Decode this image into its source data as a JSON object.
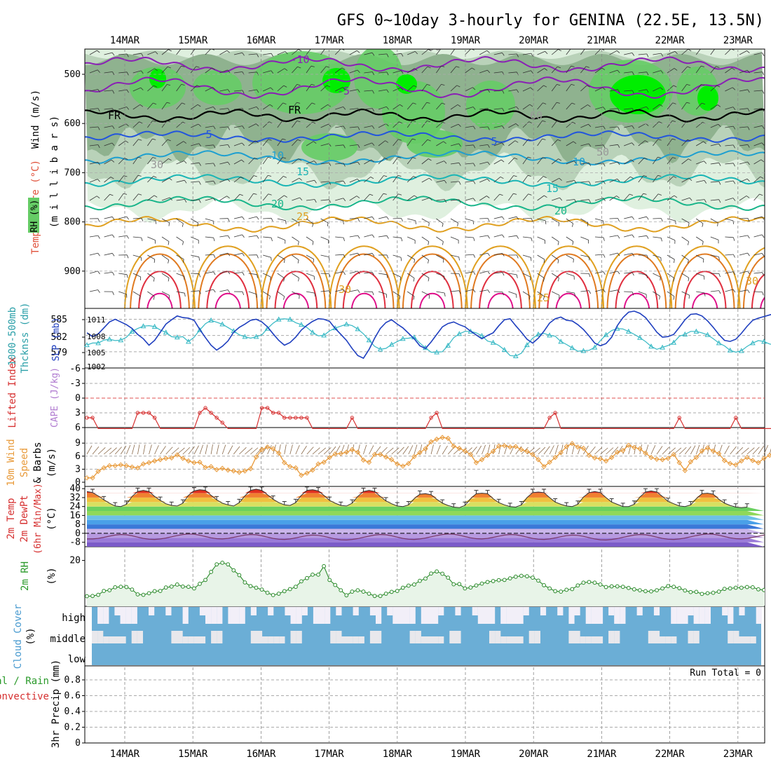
{
  "title": "GFS 0~10day 3-hourly for GENINA (22.5E, 13.5N)",
  "dates": [
    "14MAR",
    "15MAR",
    "16MAR",
    "17MAR",
    "18MAR",
    "19MAR",
    "20MAR",
    "21MAR",
    "22MAR",
    "23MAR"
  ],
  "colors": {
    "rh_light": "#dff0df",
    "rh_mid": "#b9d2b9",
    "rh_dark": "#8fb28f",
    "rh_green": "#66cc66",
    "rh_bright": "#00ee00",
    "purple": "#8a1fb5",
    "blue": "#2255dd",
    "teal": "#1d9fd0",
    "cyan": "#19b5b5",
    "green_teal": "#19b58a",
    "gold": "#e0a020",
    "orange": "#e07a20",
    "red": "#e03040",
    "magenta": "#e0108a",
    "slp": "#1f3fbf",
    "thick": "#35b8c4",
    "li": "#d63030",
    "wind": "#e89a3a",
    "cloud": "#6baed6",
    "rhline": "#2a8a2a"
  },
  "panels": [
    {
      "id": "upper",
      "labels": [
        "Wind (m/s)",
        "Temperature (°C)",
        "RH (%)",
        "(m i l l i b a r s)"
      ],
      "yticks": [
        "500",
        "600",
        "700",
        "800",
        "900"
      ],
      "contour_labels": [
        "-10",
        "-5",
        "FR",
        "FR",
        "5",
        "5",
        "10",
        "10",
        "15",
        "15",
        "20",
        "20",
        "25",
        "25",
        "30",
        "30",
        "30",
        "30",
        "50",
        "60"
      ]
    },
    {
      "id": "slp",
      "labels": [
        "1000-500mb",
        "Thcknss (dm)",
        "SLP (mb)"
      ],
      "yticks_left": [
        "585",
        "582",
        "579"
      ],
      "yticks_right": [
        "1011",
        "1008",
        "1005",
        "1002"
      ]
    },
    {
      "id": "li",
      "labels": [
        "Lifted Index",
        "CAPE (J/kg)"
      ],
      "yticks": [
        "-6",
        "-3",
        "0",
        "3",
        "6"
      ]
    },
    {
      "id": "wind10",
      "labels": [
        "10m Wind",
        "Speed",
        "& Barbs",
        "(m/s)"
      ],
      "yticks": [
        "9",
        "6",
        "3",
        "0"
      ]
    },
    {
      "id": "temp",
      "labels": [
        "2m Temp",
        "2m DewPt",
        "(6hr Min/Max)",
        "(°C)"
      ],
      "yticks": [
        "40",
        "32",
        "24",
        "16",
        "8",
        "0",
        "-8"
      ]
    },
    {
      "id": "rh2m",
      "labels": [
        "2m RH",
        "(%)"
      ],
      "yticks": [
        "20"
      ]
    },
    {
      "id": "cloud",
      "labels": [
        "Cloud Cover",
        "(%)"
      ],
      "levels": [
        "high",
        "middle",
        "low"
      ]
    },
    {
      "id": "precip",
      "labels": [
        "3hr Precip (mm)",
        "Total / Rain",
        "Convective"
      ],
      "yticks": [
        "0.8",
        "0.6",
        "0.4",
        "0.2",
        "0"
      ],
      "run_total": "Run Total = 0"
    }
  ],
  "chart_data": [
    {
      "type": "line",
      "name": "1000-500mb Thcknss",
      "unit": "dm",
      "x": "3-hourly steps, 14MAR to 23MAR",
      "ylim": [
        577,
        587
      ],
      "values": [
        580.6,
        581.0,
        581.0,
        581.6,
        581.8,
        581.5,
        581.6,
        582.2,
        583.4,
        584.0,
        584.5,
        584.6,
        584.4,
        583.7,
        583.2,
        582.3,
        582.2,
        582.3,
        581.3,
        582.2,
        583.7,
        585.0,
        585.7,
        585.3,
        584.9,
        584.2,
        583.5,
        582.7,
        582.3,
        582.0,
        582.3,
        582.7,
        584.0,
        585.1,
        585.9,
        586.0,
        585.9,
        585.2,
        584.8,
        584.2,
        583.2,
        582.5,
        582.6,
        583.5,
        584.1,
        584.5,
        584.9,
        584.6,
        583.9,
        582.9,
        581.6,
        580.3,
        579.7,
        579.9,
        580.7,
        581.3,
        581.9,
        582.0,
        582.2,
        581.0,
        580.0,
        579.1,
        579.1,
        579.2,
        580.5,
        582.1,
        582.9,
        583.4,
        583.4,
        583.1,
        582.5,
        581.4,
        581.1,
        580.5,
        579.6,
        578.4,
        578.3,
        578.9,
        580.6,
        582.0,
        582.8,
        583.0,
        582.6,
        582.4,
        581.3,
        580.7,
        580.0,
        579.3,
        579.4,
        579.5,
        580.1,
        581.5,
        582.7,
        583.6,
        584.0,
        583.9,
        583.4,
        582.8,
        582.1,
        581.3,
        580.3,
        579.7,
        580.1,
        580.5,
        581.1,
        582.4,
        582.8,
        583.4,
        583.4,
        583.1,
        582.7,
        581.9,
        581.0,
        580.4,
        579.5,
        579.1,
        579.4,
        580.3,
        581.0,
        581.5,
        581.3,
        580.8,
        580.6
      ]
    },
    {
      "type": "line",
      "name": "SLP",
      "unit": "mb",
      "ylim": [
        1002,
        1013
      ],
      "values": [
        1008.5,
        1007.8,
        1008.3,
        1009.4,
        1010.5,
        1011.0,
        1010.5,
        1010.0,
        1009.3,
        1008.2,
        1007.4,
        1006.2,
        1007.1,
        1008.6,
        1010.1,
        1010.9,
        1011.6,
        1011.3,
        1011.2,
        1010.8,
        1009.1,
        1007.6,
        1006.2,
        1005.3,
        1006.0,
        1007.0,
        1008.6,
        1009.5,
        1010.1,
        1010.8,
        1011.0,
        1010.5,
        1009.6,
        1008.3,
        1007.1,
        1006.2,
        1006.7,
        1007.7,
        1009.0,
        1009.9,
        1010.6,
        1011.1,
        1011.0,
        1010.6,
        1009.3,
        1008.2,
        1007.1,
        1005.6,
        1004.3,
        1003.8,
        1005.4,
        1007.5,
        1009.3,
        1010.4,
        1010.9,
        1010.1,
        1009.4,
        1008.4,
        1007.4,
        1006.1,
        1005.6,
        1006.8,
        1008.2,
        1009.6,
        1010.2,
        1010.5,
        1010.0,
        1009.6,
        1008.8,
        1008.1,
        1007.4,
        1008.0,
        1008.5,
        1009.8,
        1010.9,
        1011.1,
        1009.8,
        1008.6,
        1007.3,
        1006.6,
        1007.5,
        1008.8,
        1010.3,
        1011.1,
        1011.4,
        1010.8,
        1010.7,
        1010.0,
        1009.1,
        1007.9,
        1006.6,
        1006.1,
        1006.5,
        1007.7,
        1009.8,
        1011.3,
        1012.3,
        1012.5,
        1012.1,
        1011.3,
        1010.0,
        1008.6,
        1007.7,
        1007.8,
        1008.2,
        1009.5,
        1010.9,
        1011.9,
        1012.0,
        1011.6,
        1010.7,
        1009.5,
        1008.2,
        1007.1,
        1006.9,
        1007.3,
        1008.4,
        1009.7,
        1010.8,
        1011.2,
        1011.5,
        1011.8,
        1012.1
      ]
    },
    {
      "type": "line",
      "name": "Lifted Index",
      "ylim": [
        -6,
        6
      ],
      "values": [
        4,
        4,
        null,
        null,
        null,
        null,
        null,
        null,
        null,
        3,
        3,
        3,
        4,
        null,
        null,
        null,
        null,
        null,
        null,
        null,
        3,
        2,
        3,
        4,
        5,
        null,
        null,
        null,
        null,
        null,
        null,
        2,
        2,
        3,
        3,
        4,
        4,
        4,
        4,
        4,
        null,
        null,
        null,
        null,
        null,
        null,
        null,
        4,
        null,
        null,
        null,
        null,
        null,
        null,
        null,
        null,
        null,
        null,
        null,
        null,
        null,
        4,
        3,
        null,
        null,
        null,
        null,
        null,
        null,
        null,
        null,
        null,
        null,
        null,
        null,
        null,
        null,
        null,
        null,
        null,
        null,
        null,
        4,
        3,
        null,
        null,
        null,
        null,
        null,
        null,
        null,
        null,
        null,
        null,
        null,
        null,
        null,
        null,
        null,
        null,
        null,
        null,
        null,
        null,
        null,
        4,
        null,
        null,
        null,
        null,
        null,
        null,
        null,
        null,
        null,
        4,
        null,
        null,
        null,
        null,
        null,
        null,
        null,
        null
      ]
    },
    {
      "type": "line",
      "name": "10m Wind Speed",
      "unit": "m/s",
      "ylim": [
        0,
        11
      ],
      "values": [
        1.0,
        1.0,
        2.5,
        3.3,
        3.8,
        3.8,
        4.0,
        3.8,
        3.5,
        3.3,
        4.2,
        4.5,
        4.9,
        5.2,
        5.5,
        5.6,
        6.3,
        5.5,
        4.9,
        4.5,
        4.6,
        3.4,
        3.6,
        2.9,
        3.2,
        2.8,
        2.6,
        2.3,
        2.6,
        3.1,
        5.8,
        7.5,
        8.1,
        7.7,
        6.7,
        4.5,
        3.6,
        3.3,
        1.6,
        2.1,
        2.8,
        4.2,
        4.6,
        5.7,
        6.5,
        6.6,
        6.9,
        7.5,
        6.9,
        5.1,
        4.6,
        6.4,
        6.4,
        5.8,
        5.2,
        4.2,
        3.7,
        4.3,
        5.9,
        6.8,
        7.7,
        9.3,
        9.9,
        10.3,
        10.1,
        8.3,
        7.8,
        7.2,
        6.4,
        4.5,
        5.2,
        6.2,
        7.1,
        8.3,
        8.4,
        8.1,
        8.2,
        7.5,
        7.1,
        6.4,
        5.2,
        3.6,
        4.6,
        5.7,
        6.8,
        8.2,
        8.9,
        8.1,
        7.8,
        6.2,
        5.6,
        5.4,
        4.9,
        5.7,
        6.9,
        7.3,
        8.5,
        8.0,
        7.7,
        6.7,
        5.7,
        5.3,
        5.2,
        5.5,
        6.4,
        4.5,
        2.7,
        4.7,
        5.7,
        7.2,
        7.9,
        7.2,
        6.6,
        5.0,
        4.3,
        4.0,
        4.9,
        5.7,
        5.0,
        4.5,
        5.5,
        6.2,
        6.7
      ]
    },
    {
      "type": "area",
      "name": "2m Temp",
      "unit": "°C",
      "ylim": [
        -12,
        42
      ],
      "values": [
        37.5,
        36.5,
        33.5,
        30.0,
        27.0,
        24.5,
        24.0,
        26.0,
        33.0,
        37.5,
        38.5,
        37.5,
        33.0,
        29.5,
        26.5,
        25.0,
        24.5,
        27.0,
        34.0,
        38.0,
        39.0,
        38.5,
        34.0,
        30.0,
        27.0,
        25.5,
        24.5,
        27.5,
        33.5,
        38.5,
        39.5,
        38.5,
        34.5,
        30.5,
        27.5,
        25.5,
        25.0,
        27.5,
        34.0,
        38.5,
        39.0,
        38.0,
        34.0,
        29.5,
        27.0,
        25.0,
        24.5,
        27.0,
        33.0,
        37.5,
        38.5,
        37.5,
        33.0,
        29.0,
        26.5,
        24.5,
        24.0,
        25.5,
        31.0,
        35.0,
        35.5,
        34.5,
        30.5,
        27.0,
        25.0,
        23.5,
        23.0,
        25.0,
        31.0,
        35.5,
        36.0,
        35.5,
        31.0,
        27.5,
        25.5,
        24.0,
        23.5,
        25.5,
        32.0,
        36.5,
        37.0,
        36.5,
        32.0,
        28.0,
        26.0,
        24.5,
        24.0,
        26.0,
        32.5,
        36.5,
        37.5,
        36.5,
        32.0,
        28.0,
        26.0,
        24.0,
        24.0,
        26.0,
        32.5,
        37.0,
        38.0,
        37.0,
        33.0,
        28.5,
        26.5,
        24.5,
        24.0,
        25.5,
        31.0,
        35.5,
        36.0,
        35.0,
        30.5,
        27.0,
        25.0,
        23.5,
        23.0,
        23.5
      ]
    },
    {
      "type": "line",
      "name": "2m DewPt",
      "unit": "°C",
      "values": [
        -5.0,
        -5.0,
        -4.5,
        -3.6,
        -2.5,
        -1.6,
        -1.1,
        -1.3,
        -2.2,
        -3.4,
        -4.5,
        -5.3,
        -5.5,
        -5.0,
        -4.2,
        -3.1,
        -2.0,
        -1.1,
        -0.6,
        -0.8,
        -1.7,
        -2.9,
        -4.0,
        -4.8,
        -5.0,
        -4.5,
        -3.6,
        -2.5,
        -1.6,
        -1.1,
        -1.3,
        -2.2,
        -3.4,
        -4.5,
        -5.3,
        -5.5,
        -5.0,
        -4.1,
        -3.0,
        -2.1,
        -1.6,
        -1.8,
        -2.7,
        -3.9,
        -5.0,
        -5.8,
        -6.0,
        -5.5,
        -4.7,
        -3.6,
        -2.5,
        -1.6,
        -1.1,
        -1.3,
        -2.2,
        -3.4,
        -4.5,
        -5.3,
        -5.5,
        -5.0,
        -4.2,
        -3.1,
        -2.0,
        -1.1,
        -0.6,
        -0.8,
        -1.7,
        -2.9,
        -4.0,
        -4.8,
        -5.0,
        -4.5,
        -3.6,
        -2.5,
        -1.6,
        -1.1,
        -1.3,
        -2.2,
        -3.4,
        -4.5,
        -5.3,
        -5.5,
        -5.0,
        -4.1,
        -3.0,
        -2.1,
        -1.6,
        -1.8,
        -2.7,
        -3.9,
        -5.0,
        -5.8,
        -6.0,
        -5.5,
        -4.7,
        -3.6,
        -2.5,
        -1.6,
        -1.1,
        -1.3,
        -2.2,
        -3.4,
        -4.5,
        -5.3,
        -5.5,
        -5.0,
        -4.2,
        -3.1,
        -2.0,
        -1.1,
        -0.6,
        -0.8,
        -1.7,
        -2.9,
        -4.0,
        -4.8,
        -5.0,
        -4.5,
        -3.6,
        -2.5,
        -1.6,
        -1.1,
        -1.3
      ]
    },
    {
      "type": "line",
      "name": "2m RH",
      "unit": "%",
      "ylim": [
        0,
        26
      ],
      "values": [
        4.4,
        4.5,
        5.0,
        6.7,
        7.0,
        8.3,
        8.5,
        8.4,
        7.3,
        5.2,
        5.0,
        5.7,
        6.6,
        6.7,
        8.2,
        8.6,
        9.5,
        8.6,
        8.5,
        7.8,
        9.8,
        11.5,
        15.0,
        18.3,
        19.0,
        18.3,
        15.7,
        13.6,
        10.4,
        8.8,
        8.1,
        7.3,
        5.9,
        4.9,
        5.5,
        6.6,
        7.5,
        8.5,
        10.9,
        12.3,
        13.8,
        13.8,
        17.5,
        11.5,
        9.3,
        7.0,
        4.8,
        6.4,
        7.0,
        6.4,
        5.5,
        4.5,
        4.5,
        5.5,
        6.3,
        6.7,
        8.1,
        9.0,
        9.5,
        11.1,
        12.1,
        14.3,
        15.2,
        14.2,
        12.5,
        9.6,
        9.7,
        7.8,
        8.2,
        9.1,
        9.9,
        10.6,
        11.0,
        11.4,
        11.5,
        12.2,
        12.9,
        13.3,
        13.1,
        12.5,
        11.2,
        9.2,
        7.8,
        6.6,
        6.4,
        7.2,
        7.5,
        9.1,
        10.3,
        10.6,
        10.3,
        9.5,
        8.4,
        8.7,
        8.7,
        8.5,
        8.0,
        7.4,
        7.0,
        6.6,
        6.5,
        7.0,
        7.8,
        8.8,
        8.5,
        7.9,
        6.9,
        6.2,
        6.3,
        5.4,
        5.7,
        5.9,
        6.4,
        7.6,
        7.8,
        8.1,
        8.1,
        8.4,
        8.3,
        7.4,
        7.1,
        6.6,
        6.4
      ]
    },
    {
      "type": "bar",
      "name": "3hr Precip",
      "unit": "mm",
      "ylim": [
        0,
        1
      ],
      "values": [],
      "run_total": 0
    }
  ]
}
